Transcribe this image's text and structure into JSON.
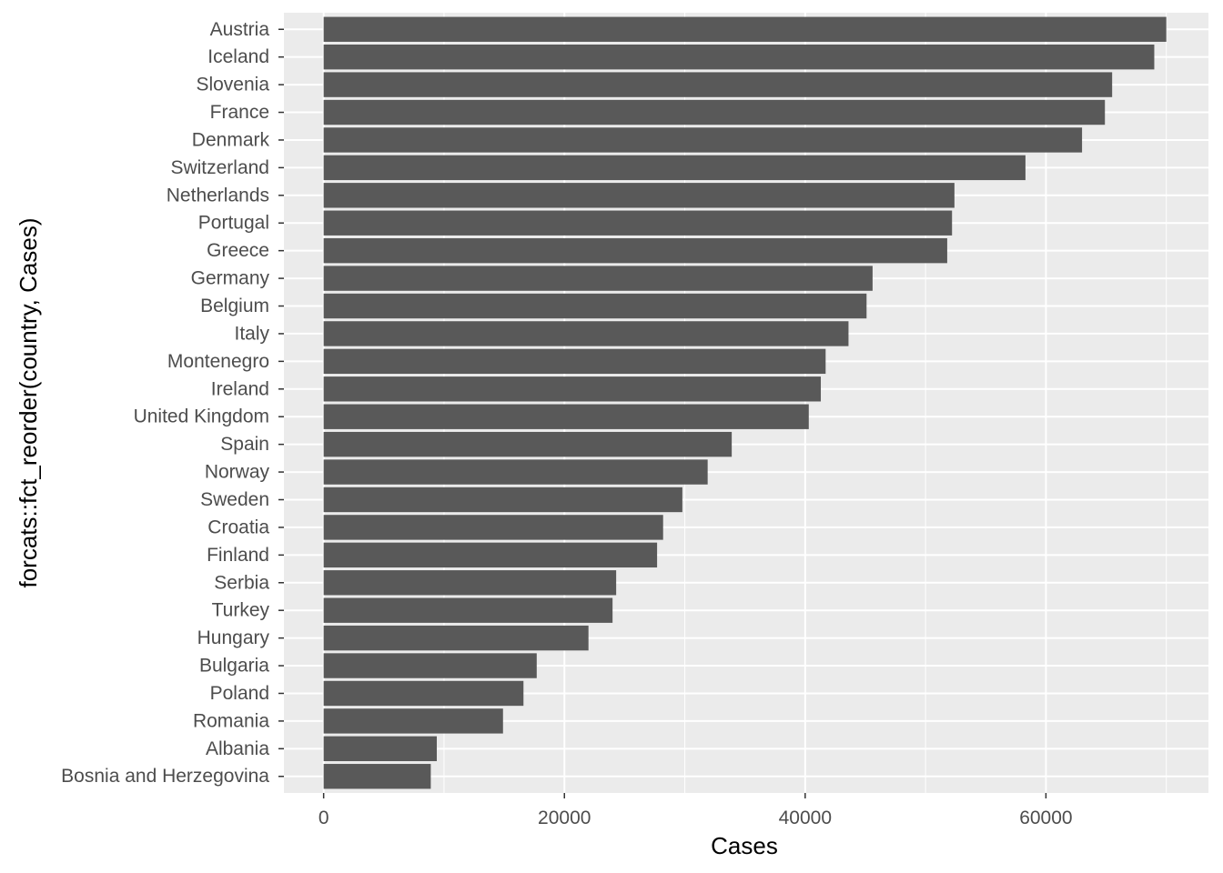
{
  "chart_data": {
    "type": "bar",
    "orientation": "horizontal",
    "xlabel": "Cases",
    "ylabel": "forcats::fct_reorder(country, Cases)",
    "xlim": [
      -3300,
      73500
    ],
    "x_ticks": [
      0,
      20000,
      40000,
      60000
    ],
    "x_tick_labels": [
      "0",
      "20000",
      "40000",
      "60000"
    ],
    "grid": true,
    "legend": "none",
    "colors": {
      "bar": "#595959",
      "panel": "#ebebeb",
      "grid_major": "#ffffff",
      "tick_text": "#4d4d4d"
    },
    "categories": [
      "Austria",
      "Iceland",
      "Slovenia",
      "France",
      "Denmark",
      "Switzerland",
      "Netherlands",
      "Portugal",
      "Greece",
      "Germany",
      "Belgium",
      "Italy",
      "Montenegro",
      "Ireland",
      "United Kingdom",
      "Spain",
      "Norway",
      "Sweden",
      "Croatia",
      "Finland",
      "Serbia",
      "Turkey",
      "Hungary",
      "Bulgaria",
      "Poland",
      "Romania",
      "Albania",
      "Bosnia and Herzegovina"
    ],
    "values": [
      70000,
      69000,
      65500,
      64900,
      63000,
      58300,
      52400,
      52200,
      51800,
      45600,
      45100,
      43600,
      41700,
      41300,
      40300,
      33900,
      31900,
      29800,
      28200,
      27700,
      24300,
      24000,
      22000,
      17700,
      16600,
      14900,
      9400,
      8900
    ]
  }
}
